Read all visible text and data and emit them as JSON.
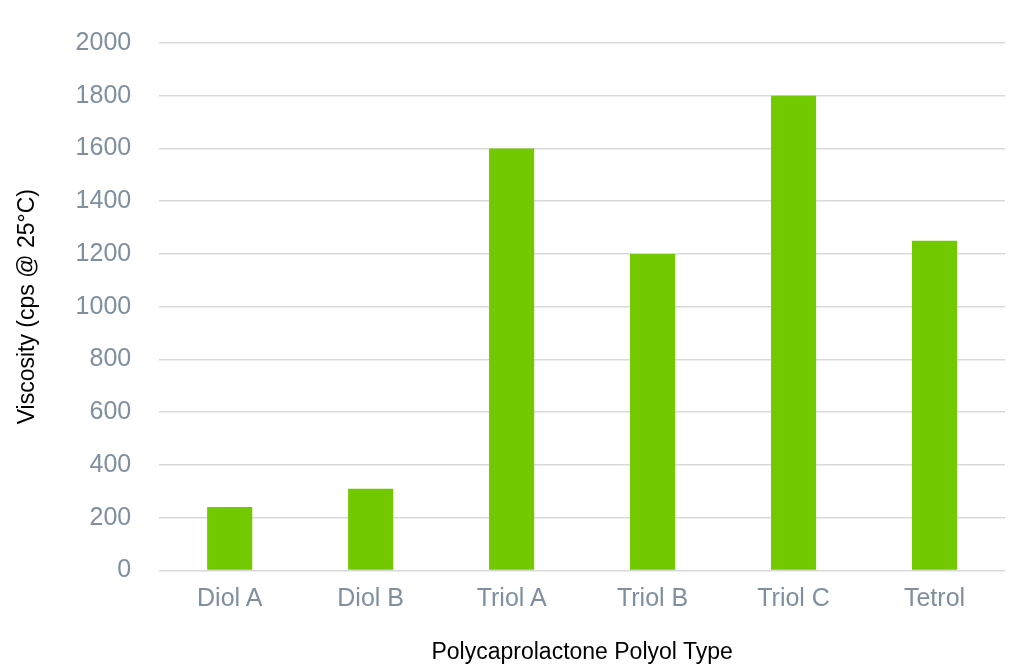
{
  "chart_data": {
    "type": "bar",
    "xlabel": "Polycaprolactone Polyol Type",
    "ylabel": "Viscosity (cps @ 25°C)",
    "categories": [
      "Diol A",
      "Diol B",
      "Triol A",
      "Triol B",
      "Triol C",
      "Tetrol"
    ],
    "values": [
      240,
      310,
      1600,
      1200,
      1800,
      1250
    ],
    "color": "#72c900",
    "ylim": [
      0,
      2000
    ],
    "yticks": [
      0,
      200,
      400,
      600,
      800,
      1000,
      1200,
      1400,
      1600,
      1800,
      2000
    ],
    "grid": "y",
    "legend": false
  }
}
